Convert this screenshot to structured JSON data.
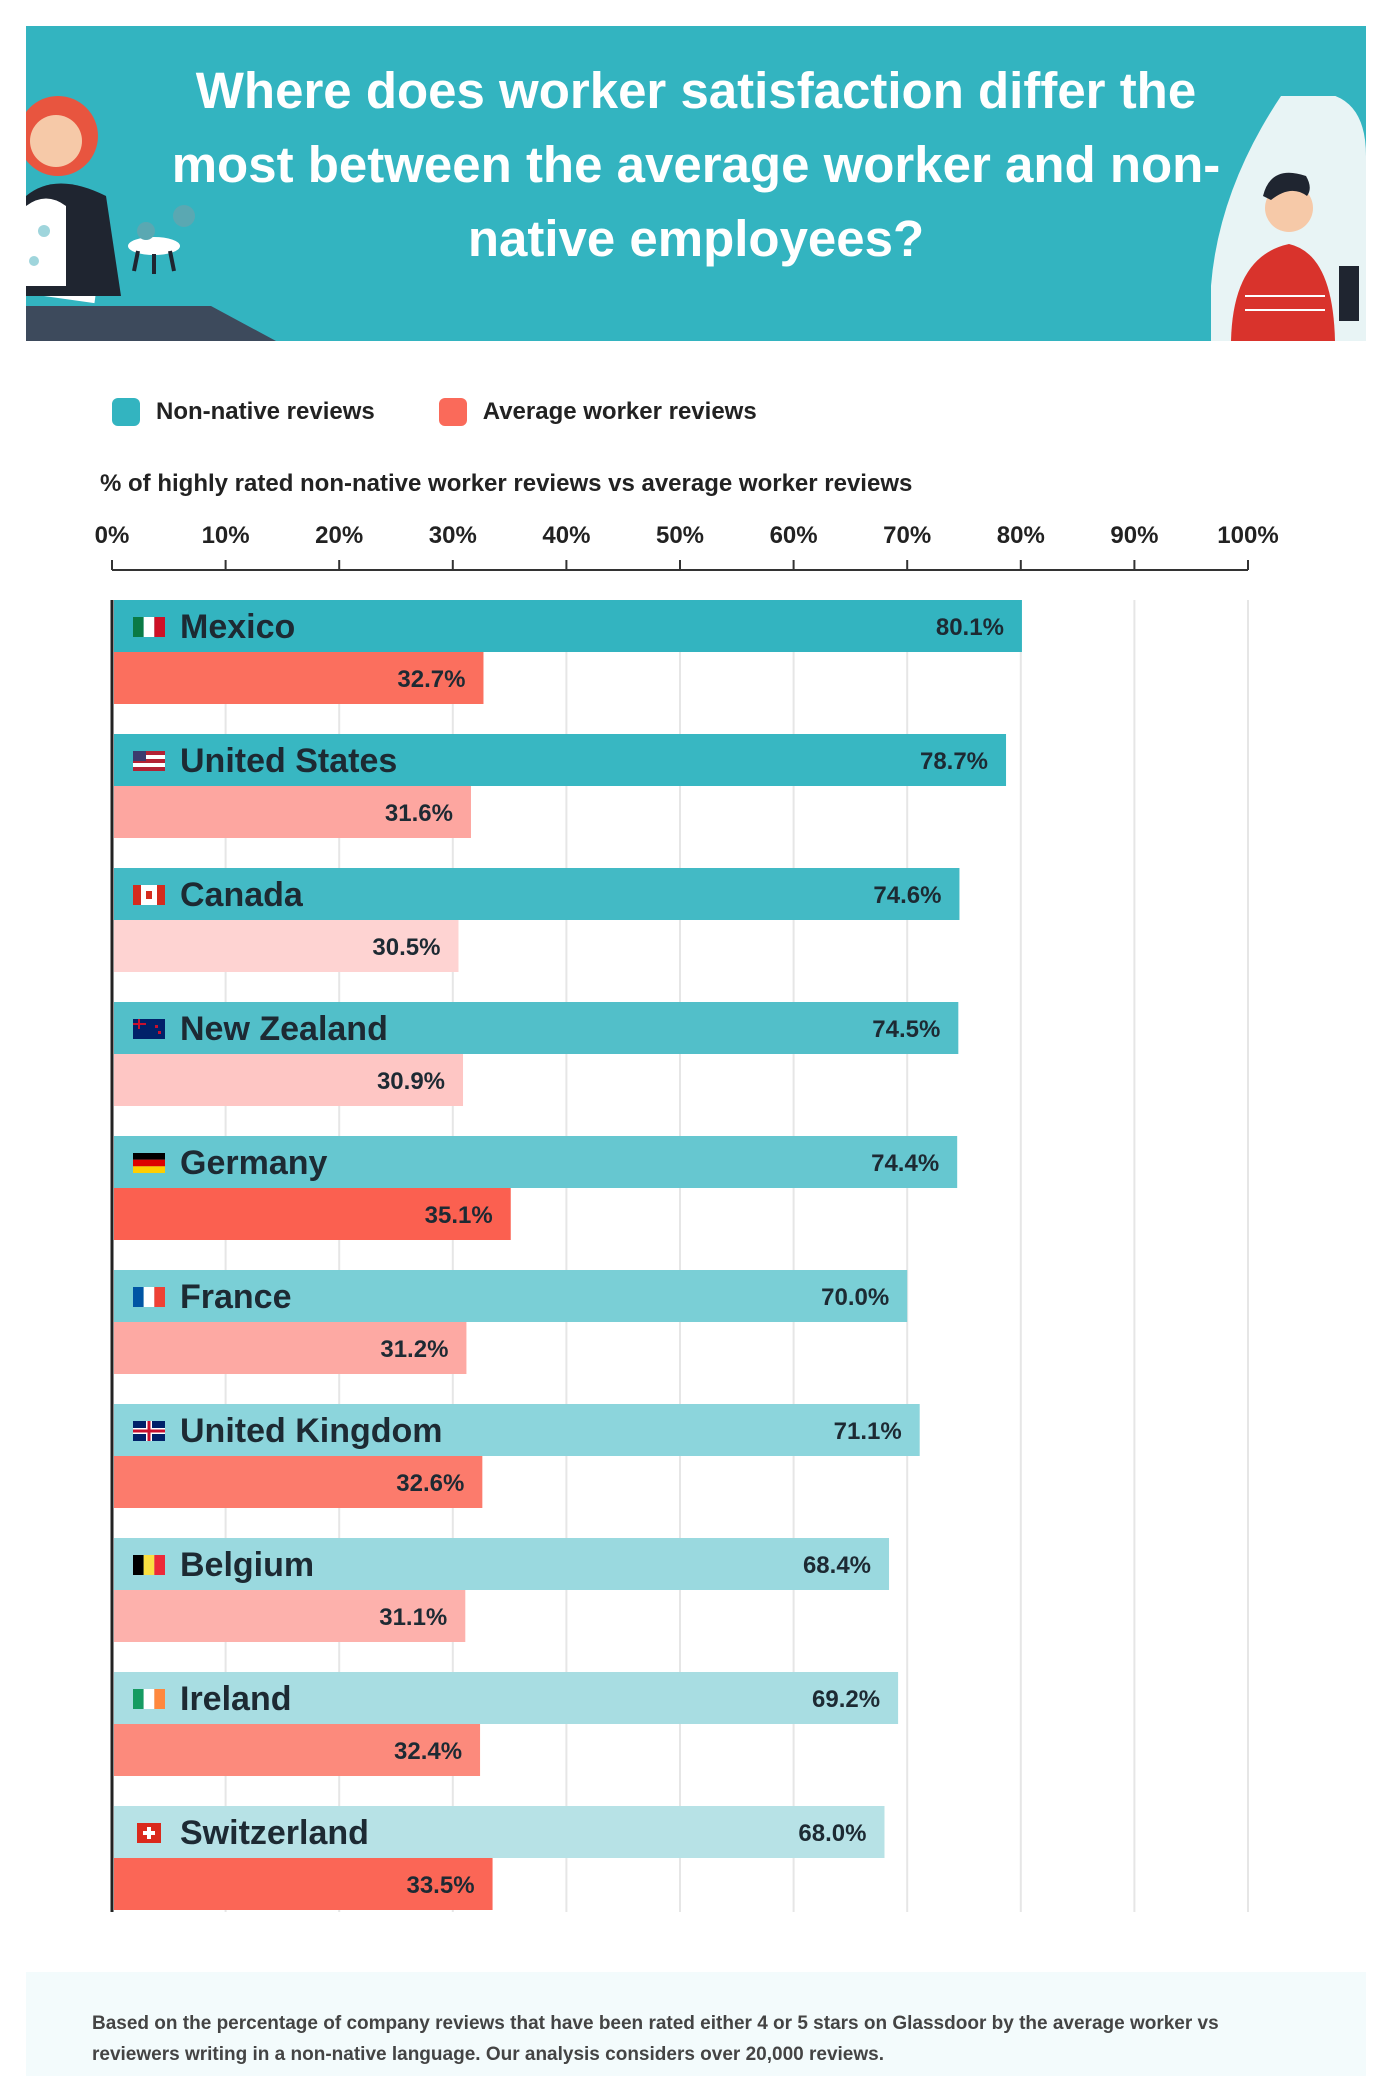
{
  "header": {
    "title": "Where does worker satisfaction differ the most between the average worker and non-native employees?"
  },
  "legend": [
    {
      "label": "Non-native reviews",
      "color": "#33b4c0",
      "icon": "teal-square-icon"
    },
    {
      "label": "Average worker reviews",
      "color": "#fa6a5a",
      "icon": "coral-square-icon"
    }
  ],
  "chart_data": {
    "type": "bar",
    "orientation": "horizontal",
    "title": "% of highly rated non-native worker reviews vs average worker reviews",
    "xlim": [
      0,
      100
    ],
    "ticks": [
      "0%",
      "10%",
      "20%",
      "30%",
      "40%",
      "50%",
      "60%",
      "70%",
      "80%",
      "90%",
      "100%"
    ],
    "grid": true,
    "categories": [
      "Mexico",
      "United States",
      "Canada",
      "New Zealand",
      "Germany",
      "France",
      "United Kingdom",
      "Belgium",
      "Ireland",
      "Switzerland"
    ],
    "flags": [
      "mexico-flag-icon",
      "united-states-flag-icon",
      "canada-flag-icon",
      "new-zealand-flag-icon",
      "germany-flag-icon",
      "france-flag-icon",
      "united-kingdom-flag-icon",
      "belgium-flag-icon",
      "ireland-flag-icon",
      "switzerland-flag-icon"
    ],
    "series": [
      {
        "name": "Non-native reviews",
        "values": [
          80.1,
          78.7,
          74.6,
          74.5,
          74.4,
          70.0,
          71.1,
          68.4,
          69.2,
          68.0
        ],
        "labels": [
          "80.1%",
          "78.7%",
          "74.6%",
          "74.5%",
          "74.4%",
          "70.0%",
          "71.1%",
          "68.4%",
          "69.2%",
          "68.0%"
        ],
        "colors": [
          "#33b4c0",
          "#38b7c2",
          "#43bac5",
          "#52bfc9",
          "#66c7d0",
          "#7acfd6",
          "#8cd5dc",
          "#9ad9df",
          "#a8dde2",
          "#b7e2e6"
        ]
      },
      {
        "name": "Average worker reviews",
        "values": [
          32.7,
          31.6,
          30.5,
          30.9,
          35.1,
          31.2,
          32.6,
          31.1,
          32.4,
          33.5
        ],
        "labels": [
          "32.7%",
          "31.6%",
          "30.5%",
          "30.9%",
          "35.1%",
          "31.2%",
          "32.6%",
          "31.1%",
          "32.4%",
          "33.5%"
        ],
        "colors": [
          "#fb6f5e",
          "#fda6a0",
          "#fed3d2",
          "#fec6c4",
          "#fb6050",
          "#fda9a3",
          "#fc7b6c",
          "#fdb1ac",
          "#fc8a7c",
          "#fb6656"
        ]
      }
    ]
  },
  "footer": {
    "note": "Based on the percentage of company reviews that have been rated either 4 or 5 stars on Glassdoor by the average worker vs reviewers writing in a non-native language. Our analysis considers over 20,000 reviews."
  }
}
